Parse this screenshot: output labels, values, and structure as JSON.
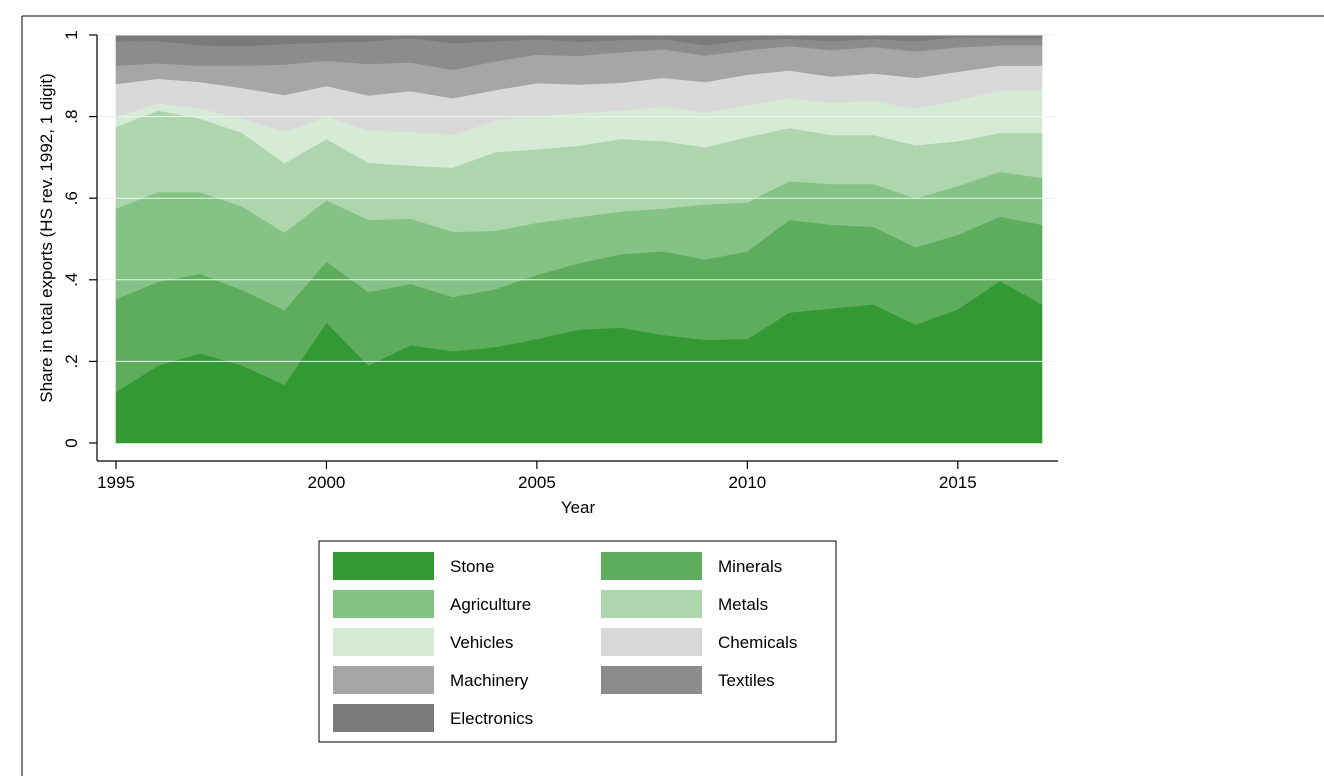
{
  "chart_data": {
    "type": "area",
    "stacked": true,
    "xlabel": "Year",
    "ylabel": "Share in total exports (HS rev. 1992, 1 digit)",
    "xlim": [
      1995,
      2017
    ],
    "ylim": [
      0,
      1
    ],
    "x_ticks": [
      1995,
      2000,
      2005,
      2010,
      2015
    ],
    "y_ticks": [
      {
        "value": 0,
        "label": "0"
      },
      {
        "value": 0.2,
        "label": ".2"
      },
      {
        "value": 0.4,
        "label": ".4"
      },
      {
        "value": 0.6,
        "label": ".6"
      },
      {
        "value": 0.8,
        "label": ".8"
      },
      {
        "value": 1,
        "label": "1"
      }
    ],
    "grid": "horizontal",
    "legend_position": "bottom-center",
    "x": [
      1995,
      1996,
      1997,
      1998,
      1999,
      2000,
      2001,
      2002,
      2003,
      2004,
      2005,
      2006,
      2007,
      2008,
      2009,
      2010,
      2011,
      2012,
      2013,
      2014,
      2015,
      2016,
      2017
    ],
    "series": [
      {
        "name": "Stone",
        "color": "#339933",
        "values": [
          0.125,
          0.19,
          0.22,
          0.19,
          0.143,
          0.295,
          0.19,
          0.24,
          0.225,
          0.235,
          0.255,
          0.278,
          0.283,
          0.265,
          0.253,
          0.255,
          0.32,
          0.33,
          0.34,
          0.29,
          0.328,
          0.397,
          0.34
        ]
      },
      {
        "name": "Minerals",
        "color": "#5dad5d",
        "values": [
          0.228,
          0.205,
          0.195,
          0.185,
          0.183,
          0.15,
          0.18,
          0.15,
          0.133,
          0.142,
          0.157,
          0.163,
          0.18,
          0.205,
          0.197,
          0.215,
          0.227,
          0.205,
          0.19,
          0.19,
          0.182,
          0.158,
          0.195
        ]
      },
      {
        "name": "Agriculture",
        "color": "#85c285",
        "values": [
          0.222,
          0.22,
          0.2,
          0.205,
          0.19,
          0.15,
          0.177,
          0.16,
          0.16,
          0.143,
          0.128,
          0.113,
          0.105,
          0.105,
          0.135,
          0.12,
          0.095,
          0.1,
          0.105,
          0.12,
          0.12,
          0.11,
          0.115
        ]
      },
      {
        "name": "Metals",
        "color": "#add6ad",
        "values": [
          0.2,
          0.2,
          0.18,
          0.18,
          0.17,
          0.15,
          0.14,
          0.13,
          0.157,
          0.193,
          0.18,
          0.175,
          0.177,
          0.165,
          0.14,
          0.16,
          0.13,
          0.12,
          0.12,
          0.13,
          0.11,
          0.095,
          0.11
        ]
      },
      {
        "name": "Vehicles",
        "color": "#d6ebd6",
        "values": [
          0.025,
          0.018,
          0.025,
          0.035,
          0.077,
          0.055,
          0.08,
          0.083,
          0.08,
          0.077,
          0.082,
          0.08,
          0.07,
          0.085,
          0.085,
          0.078,
          0.073,
          0.08,
          0.083,
          0.09,
          0.1,
          0.105,
          0.105
        ]
      },
      {
        "name": "Chemicals",
        "color": "#d9d9d9",
        "values": [
          0.08,
          0.06,
          0.065,
          0.075,
          0.09,
          0.075,
          0.085,
          0.1,
          0.09,
          0.075,
          0.08,
          0.07,
          0.068,
          0.07,
          0.075,
          0.075,
          0.068,
          0.063,
          0.068,
          0.075,
          0.07,
          0.06,
          0.06
        ]
      },
      {
        "name": "Machinery",
        "color": "#a6a6a6",
        "values": [
          0.045,
          0.038,
          0.04,
          0.055,
          0.075,
          0.062,
          0.077,
          0.07,
          0.07,
          0.07,
          0.07,
          0.07,
          0.075,
          0.07,
          0.065,
          0.06,
          0.06,
          0.065,
          0.065,
          0.065,
          0.06,
          0.05,
          0.05
        ]
      },
      {
        "name": "Textiles",
        "color": "#8c8c8c",
        "values": [
          0.06,
          0.055,
          0.05,
          0.048,
          0.05,
          0.045,
          0.055,
          0.06,
          0.065,
          0.05,
          0.038,
          0.035,
          0.03,
          0.025,
          0.025,
          0.025,
          0.018,
          0.022,
          0.02,
          0.025,
          0.025,
          0.018,
          0.018
        ]
      },
      {
        "name": "Electronics",
        "color": "#7a7a7a",
        "values": [
          0.015,
          0.014,
          0.025,
          0.027,
          0.022,
          0.018,
          0.016,
          0.007,
          0.02,
          0.015,
          0.01,
          0.016,
          0.012,
          0.01,
          0.025,
          0.012,
          0.009,
          0.015,
          0.009,
          0.015,
          0.005,
          0.007,
          0.007
        ]
      }
    ]
  }
}
